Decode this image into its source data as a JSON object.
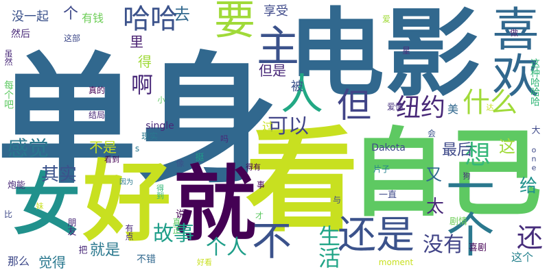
{
  "words": [
    {
      "id": "danshen",
      "text": "单身",
      "color": "#31688e"
    },
    {
      "id": "dianying",
      "text": "电影",
      "color": "#31688e"
    },
    {
      "id": "ziji",
      "text": "自己",
      "color": "#5ec962"
    },
    {
      "id": "kan",
      "text": "看",
      "color": "#c8e020"
    },
    {
      "id": "hao",
      "text": "好",
      "color": "#c8e020"
    },
    {
      "id": "jiu",
      "text": "就",
      "color": "#440154"
    },
    {
      "id": "nv",
      "text": "女",
      "color": "#21918c"
    },
    {
      "id": "yige",
      "text": "一个",
      "color": "#2a788e"
    },
    {
      "id": "xihuan",
      "text": "喜欢",
      "color": "#31688e"
    },
    {
      "id": "haishi",
      "text": "还是",
      "color": "#3b528b"
    },
    {
      "id": "bu",
      "text": "不",
      "color": "#3b528b"
    },
    {
      "id": "haha",
      "text": "哈哈",
      "color": "#3b528b"
    },
    {
      "id": "yao",
      "text": "要",
      "color": "#a0da39"
    },
    {
      "id": "zhu",
      "text": "主",
      "color": "#3b528b"
    },
    {
      "id": "ren",
      "text": "人",
      "color": "#22a884"
    },
    {
      "id": "dan",
      "text": "但",
      "color": "#414487"
    },
    {
      "id": "niuyue",
      "text": "纽约",
      "color": "#482878"
    },
    {
      "id": "shenme",
      "text": "什么",
      "color": "#a0da39"
    },
    {
      "id": "keyi",
      "text": "可以",
      "color": "#414487"
    },
    {
      "id": "ganjue",
      "text": "感觉",
      "color": "#2a788e"
    },
    {
      "id": "gushi",
      "text": "故事",
      "color": "#1f9e89"
    },
    {
      "id": "geren",
      "text": "个人",
      "color": "#1f9e89"
    },
    {
      "id": "shenghuo",
      "text": "生活",
      "color": "#20a486"
    },
    {
      "id": "meiyou",
      "text": "没有",
      "color": "#414487"
    },
    {
      "id": "hai",
      "text": "还",
      "color": "#472d7b"
    },
    {
      "id": "xiang",
      "text": "想",
      "color": "#35b779"
    },
    {
      "id": "a",
      "text": "啊",
      "color": "#482878"
    },
    {
      "id": "qishi",
      "text": "其实",
      "color": "#3b528b"
    },
    {
      "id": "zuihou",
      "text": "最后",
      "color": "#3e4989"
    },
    {
      "id": "zhe",
      "text": "这",
      "color": "#a0da39"
    },
    {
      "id": "you",
      "text": "又",
      "color": "#31688e"
    },
    {
      "id": "gei",
      "text": "给",
      "color": "#21918c"
    },
    {
      "id": "tai",
      "text": "太",
      "color": "#482878"
    },
    {
      "id": "jiushi",
      "text": "就是",
      "color": "#2a788e"
    },
    {
      "id": "juede",
      "text": "觉得",
      "color": "#2a788e"
    },
    {
      "id": "naname",
      "text": "那么",
      "color": "#3e4989"
    },
    {
      "id": "danshi",
      "text": "但是",
      "color": "#482878"
    },
    {
      "id": "bushi",
      "text": "不是",
      "color": "#c8e020"
    },
    {
      "id": "mei",
      "text": "美",
      "color": "#31688e"
    },
    {
      "id": "zhege",
      "text": "这个",
      "color": "#26828e"
    },
    {
      "id": "meiyiqi",
      "text": "没一起",
      "color": "#3b528b"
    },
    {
      "id": "ge1",
      "text": "个",
      "color": "#3e4989"
    },
    {
      "id": "youqian",
      "text": "有钱",
      "color": "#6ece58"
    },
    {
      "id": "qu",
      "text": "去",
      "color": "#31688e"
    },
    {
      "id": "xiangshou",
      "text": "享受",
      "color": "#3e4989"
    },
    {
      "id": "li",
      "text": "里",
      "color": "#481f70"
    },
    {
      "id": "de",
      "text": "得",
      "color": "#a0da39"
    },
    {
      "id": "bei",
      "text": "被",
      "color": "#3b528b"
    },
    {
      "id": "guo",
      "text": "过",
      "color": "#c8e020"
    },
    {
      "id": "dakota",
      "text": "Dakota",
      "color": "#3e4989"
    },
    {
      "id": "single",
      "text": "single",
      "color": "#482878"
    },
    {
      "id": "buxuo",
      "text": "不错",
      "color": "#31688e"
    },
    {
      "id": "xihuan2",
      "text": "喜剧",
      "color": "#440154"
    },
    {
      "id": "ranhou",
      "text": "然后",
      "color": "#482878"
    },
    {
      "id": "zhebu",
      "text": "这部",
      "color": "#3e4989"
    },
    {
      "id": "xuran",
      "text": "虽然",
      "color": "#482878"
    },
    {
      "id": "meigeba",
      "text": "每个吧",
      "color": "#5ec962"
    },
    {
      "id": "zhende",
      "text": "真的",
      "color": "#440154"
    },
    {
      "id": "jieju",
      "text": "结局",
      "color": "#482878"
    },
    {
      "id": "aiqing",
      "text": "爱情",
      "color": "#46327e"
    },
    {
      "id": "xianshi",
      "text": "现实",
      "color": "#2a788e"
    },
    {
      "id": "zhezhonghaha",
      "text": "这种哈哈哈",
      "color": "#35b779"
    },
    {
      "id": "zuo",
      "text": "做",
      "color": "#481f70"
    },
    {
      "id": "xing",
      "text": "星",
      "color": "#472d7b"
    },
    {
      "id": "ai",
      "text": "爱",
      "color": "#a0da39"
    },
    {
      "id": "da",
      "text": "大",
      "color": "#3e4989"
    },
    {
      "id": "hui",
      "text": "会",
      "color": "#3b528b"
    },
    {
      "id": "one",
      "text": "one",
      "color": "#3e4989"
    },
    {
      "id": "pianzi",
      "text": "片子",
      "color": "#26828e"
    },
    {
      "id": "gou",
      "text": "狗",
      "color": "#472d7b"
    },
    {
      "id": "yizhi",
      "text": "一直",
      "color": "#3e4989"
    },
    {
      "id": "juqing",
      "text": "剧情",
      "color": "#6ece58"
    },
    {
      "id": "moment",
      "text": "moment",
      "color": "#c8e020"
    },
    {
      "id": "haokan",
      "text": "好看",
      "color": "#c8e020"
    },
    {
      "id": "pengyou",
      "text": "朋友",
      "color": "#482878"
    },
    {
      "id": "youdian",
      "text": "有点",
      "color": "#482878"
    },
    {
      "id": "zhenzheng",
      "text": "真正",
      "color": "#5ec962"
    },
    {
      "id": "shuo",
      "text": "说",
      "color": "#440154"
    },
    {
      "id": "cai",
      "text": "才",
      "color": "#5ec962"
    },
    {
      "id": "ba",
      "text": "把",
      "color": "#482878"
    },
    {
      "id": "bi",
      "text": "比",
      "color": "#3e4989"
    },
    {
      "id": "meimei",
      "text": "妹",
      "color": "#c8e020"
    },
    {
      "id": "xiangxiang",
      "text": "像",
      "color": "#3b528b"
    },
    {
      "id": "paoneng",
      "text": "炮能",
      "color": "#482878"
    },
    {
      "id": "yinwei",
      "text": "因为",
      "color": "#2a788e"
    },
    {
      "id": "dedao",
      "text": "得到",
      "color": "#35b779"
    },
    {
      "id": "yu",
      "text": "与",
      "color": "#3e4989"
    },
    {
      "id": "shi",
      "text": "事",
      "color": "#440154"
    },
    {
      "id": "deyou",
      "text": "得有",
      "color": "#440154"
    },
    {
      "id": "ma",
      "text": "吗",
      "color": "#482878"
    },
    {
      "id": "ting",
      "text": "挺",
      "color": "#1f9e89"
    },
    {
      "id": "kandao",
      "text": "看到",
      "color": "#440154"
    },
    {
      "id": "s",
      "text": "s",
      "color": "#2a788e"
    },
    {
      "id": "xiao",
      "text": "小",
      "color": "#5ec962"
    },
    {
      "id": "da2",
      "text": "达",
      "color": "#c8e020"
    }
  ]
}
